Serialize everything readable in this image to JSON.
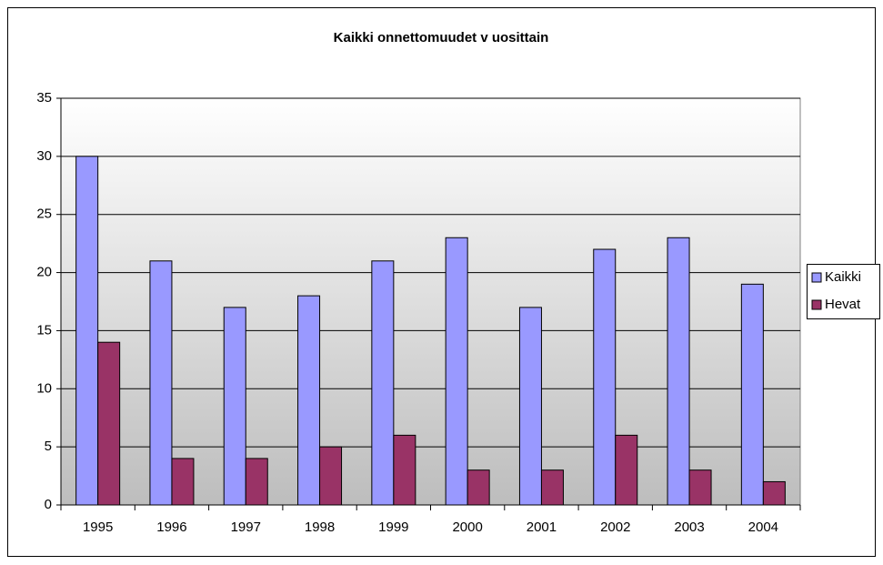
{
  "chart_data": {
    "type": "bar",
    "title": "Kaikki onnettomuudet v uosittain",
    "categories": [
      "1995",
      "1996",
      "1997",
      "1998",
      "1999",
      "2000",
      "2001",
      "2002",
      "2003",
      "2004"
    ],
    "series": [
      {
        "name": "Kaikki",
        "color": "#9999ff",
        "values": [
          30,
          21,
          17,
          18,
          21,
          23,
          17,
          22,
          23,
          19
        ]
      },
      {
        "name": "Hevat",
        "color": "#993366",
        "values": [
          14,
          4,
          4,
          5,
          6,
          3,
          3,
          6,
          3,
          2
        ]
      }
    ],
    "ylim": [
      0,
      35
    ],
    "yticks": [
      0,
      5,
      10,
      15,
      20,
      25,
      30,
      35
    ],
    "grid": true,
    "legend": "right"
  }
}
